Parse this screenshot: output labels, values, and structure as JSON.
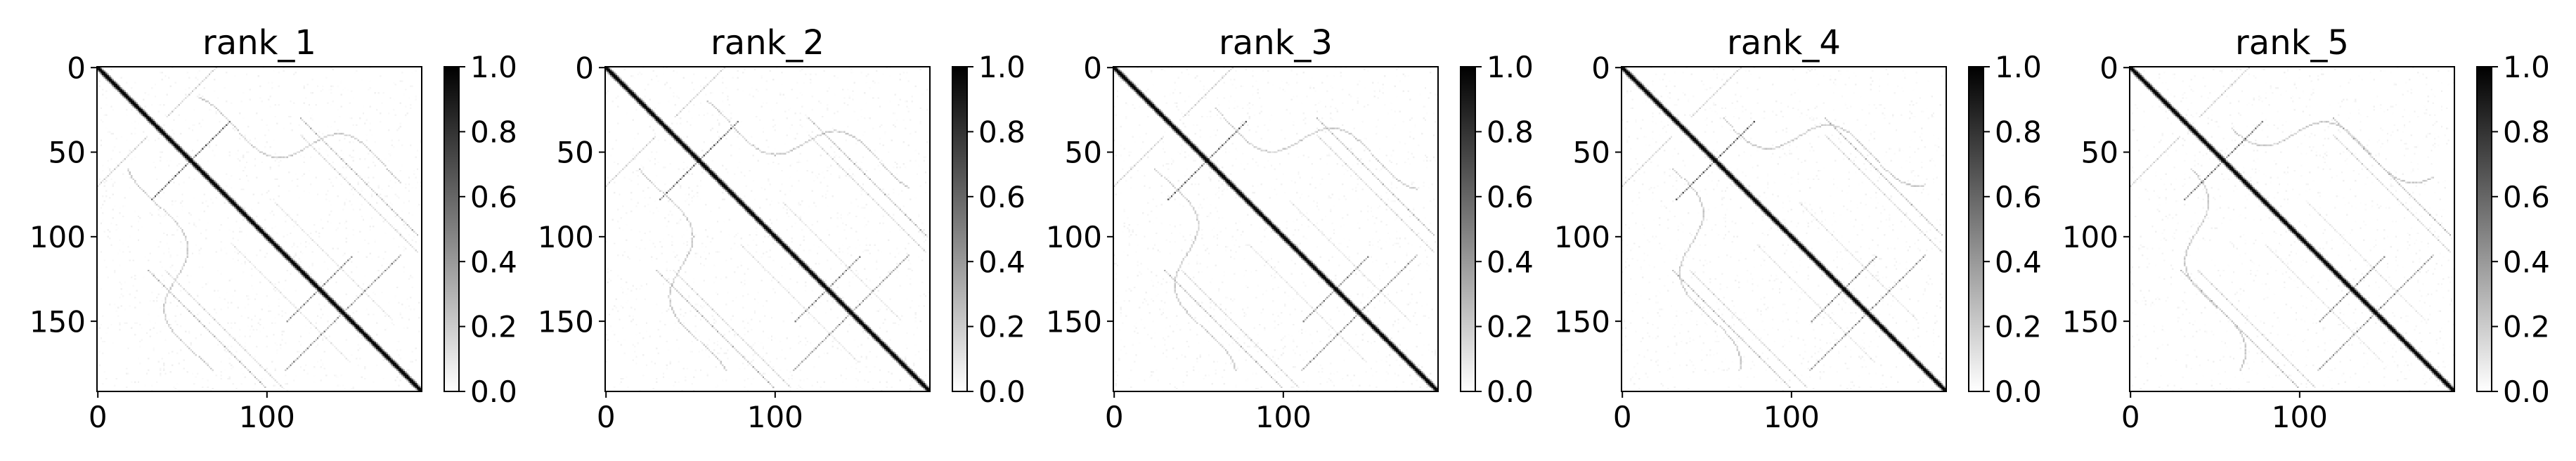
{
  "chart_data": [
    {
      "type": "heatmap",
      "title": "rank_1",
      "x_ticks": [
        "0",
        "100"
      ],
      "y_ticks": [
        "0",
        "50",
        "100",
        "150"
      ],
      "colorbar_ticks": [
        "0.0",
        "0.2",
        "0.4",
        "0.6",
        "0.8",
        "1.0"
      ],
      "colorbar_range": [
        0.0,
        1.0
      ],
      "colormap": "gray_r",
      "matrix_size": 192,
      "structure": {
        "main_diagonal": 1.0,
        "antidiagonal_bands": [
          {
            "i_range": [
              32,
              72
            ],
            "sum": 110,
            "value": 0.55
          },
          {
            "i_range": [
              112,
              142
            ],
            "sum": 262,
            "value": 0.45
          },
          {
            "i_range": [
              138,
              178
            ],
            "sum": 288,
            "value": 0.45
          }
        ],
        "parallel_bands": [
          {
            "i_range": [
              120,
              190
            ],
            "offset": -90,
            "value": 0.25
          },
          {
            "i_range": [
              60,
              130
            ],
            "offset": 80,
            "value": 0.22
          }
        ]
      }
    },
    {
      "type": "heatmap",
      "title": "rank_2",
      "x_ticks": [
        "0",
        "100"
      ],
      "y_ticks": [
        "0",
        "50",
        "100",
        "150"
      ],
      "colorbar_ticks": [
        "0.0",
        "0.2",
        "0.4",
        "0.6",
        "0.8",
        "1.0"
      ],
      "colorbar_range": [
        0.0,
        1.0
      ],
      "colormap": "gray_r",
      "matrix_size": 192
    },
    {
      "type": "heatmap",
      "title": "rank_3",
      "x_ticks": [
        "0",
        "100"
      ],
      "y_ticks": [
        "0",
        "50",
        "100",
        "150"
      ],
      "colorbar_ticks": [
        "0.0",
        "0.2",
        "0.4",
        "0.6",
        "0.8",
        "1.0"
      ],
      "colorbar_range": [
        0.0,
        1.0
      ],
      "colormap": "gray_r",
      "matrix_size": 192
    },
    {
      "type": "heatmap",
      "title": "rank_4",
      "x_ticks": [
        "0",
        "100"
      ],
      "y_ticks": [
        "0",
        "50",
        "100",
        "150"
      ],
      "colorbar_ticks": [
        "0.0",
        "0.2",
        "0.4",
        "0.6",
        "0.8",
        "1.0"
      ],
      "colorbar_range": [
        0.0,
        1.0
      ],
      "colormap": "gray_r",
      "matrix_size": 192
    },
    {
      "type": "heatmap",
      "title": "rank_5",
      "x_ticks": [
        "0",
        "100"
      ],
      "y_ticks": [
        "0",
        "50",
        "100",
        "150"
      ],
      "colorbar_ticks": [
        "0.0",
        "0.2",
        "0.4",
        "0.6",
        "0.8",
        "1.0"
      ],
      "colorbar_range": [
        0.0,
        1.0
      ],
      "colormap": "gray_r",
      "matrix_size": 192
    }
  ]
}
